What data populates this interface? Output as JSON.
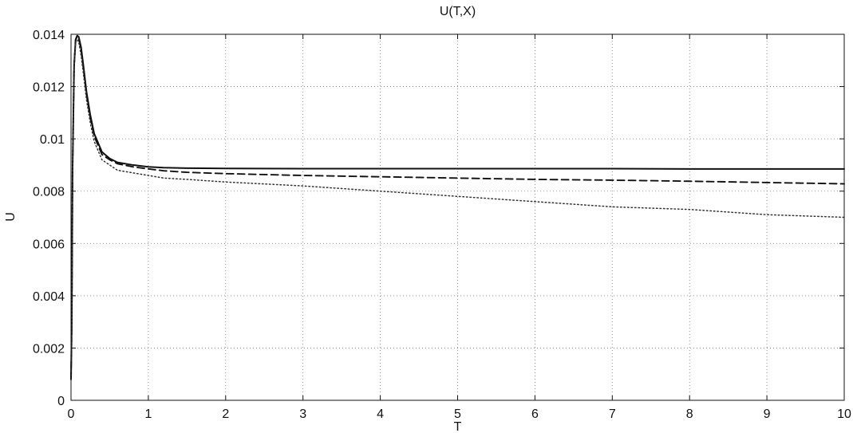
{
  "chart_data": {
    "type": "line",
    "title": "U(T,X)",
    "xlabel": "T",
    "ylabel": "U",
    "xlim": [
      0,
      10
    ],
    "ylim": [
      0,
      0.014
    ],
    "x_ticks": [
      0,
      1,
      2,
      3,
      4,
      5,
      6,
      7,
      8,
      9,
      10
    ],
    "x_tick_labels": [
      "0",
      "1",
      "2",
      "3",
      "4",
      "5",
      "6",
      "7",
      "8",
      "9",
      "10"
    ],
    "y_ticks": [
      0,
      0.002,
      0.004,
      0.006,
      0.008,
      0.01,
      0.012,
      0.014
    ],
    "y_tick_labels": [
      "0",
      "0.002",
      "0.004",
      "0.006",
      "0.008",
      "0.01",
      "0.012",
      "0.014"
    ],
    "grid": true,
    "series": [
      {
        "line_style": "solid",
        "color": "#111111",
        "x": [
          0,
          0.01,
          0.02,
          0.04,
          0.06,
          0.08,
          0.1,
          0.13,
          0.16,
          0.2,
          0.25,
          0.3,
          0.4,
          0.5,
          0.6,
          0.8,
          1.0,
          1.2,
          1.5,
          2,
          3,
          4,
          5,
          6,
          7,
          8,
          9,
          10
        ],
        "y": [
          0.0008,
          0.003,
          0.0088,
          0.0128,
          0.0138,
          0.01395,
          0.0139,
          0.0135,
          0.0128,
          0.0118,
          0.0109,
          0.0102,
          0.0095,
          0.00925,
          0.0091,
          0.009,
          0.00893,
          0.0089,
          0.00888,
          0.00887,
          0.00886,
          0.00886,
          0.00886,
          0.00886,
          0.00886,
          0.00885,
          0.00885,
          0.00885
        ]
      },
      {
        "line_style": "dashed",
        "color": "#111111",
        "x": [
          0,
          0.01,
          0.02,
          0.04,
          0.06,
          0.08,
          0.1,
          0.13,
          0.16,
          0.2,
          0.25,
          0.3,
          0.4,
          0.5,
          0.6,
          0.8,
          1.0,
          1.2,
          1.5,
          2,
          3,
          4,
          5,
          6,
          7,
          8,
          9,
          10
        ],
        "y": [
          0.0008,
          0.003,
          0.0088,
          0.0128,
          0.0138,
          0.0139,
          0.01385,
          0.0134,
          0.0127,
          0.0117,
          0.0108,
          0.0101,
          0.0094,
          0.0092,
          0.00905,
          0.00893,
          0.00885,
          0.00878,
          0.00872,
          0.00867,
          0.0086,
          0.00855,
          0.0085,
          0.00845,
          0.00842,
          0.00838,
          0.00833,
          0.00828
        ]
      },
      {
        "line_style": "dotted",
        "color": "#333333",
        "x": [
          0,
          0.01,
          0.02,
          0.04,
          0.06,
          0.08,
          0.1,
          0.13,
          0.16,
          0.2,
          0.25,
          0.3,
          0.4,
          0.5,
          0.6,
          0.8,
          1.0,
          1.2,
          1.5,
          2,
          3,
          4,
          5,
          6,
          7,
          8,
          9,
          10
        ],
        "y": [
          0.0008,
          0.003,
          0.0087,
          0.0127,
          0.0137,
          0.0138,
          0.0137,
          0.0132,
          0.0125,
          0.0115,
          0.0106,
          0.0099,
          0.0092,
          0.009,
          0.0088,
          0.0087,
          0.0086,
          0.0085,
          0.00845,
          0.00835,
          0.0082,
          0.008,
          0.0078,
          0.0076,
          0.0074,
          0.0073,
          0.0071,
          0.007
        ]
      }
    ]
  }
}
